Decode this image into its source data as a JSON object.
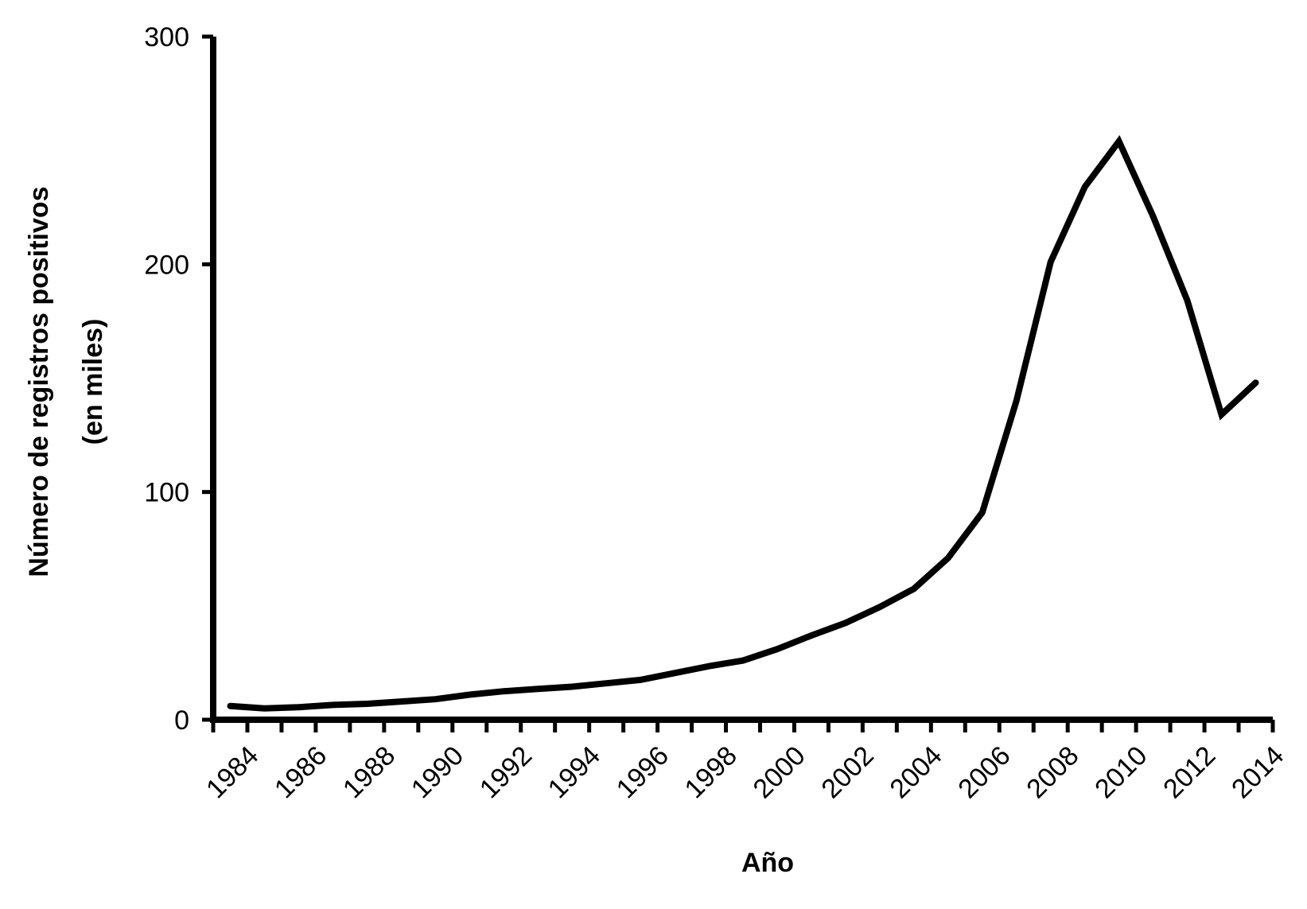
{
  "chart_data": {
    "type": "line",
    "title": "",
    "xlabel": "Año",
    "ylabel_lines": [
      "Número de registros positivos",
      "(en miles)"
    ],
    "x": [
      1984,
      1985,
      1986,
      1987,
      1988,
      1989,
      1990,
      1991,
      1992,
      1993,
      1994,
      1995,
      1996,
      1997,
      1998,
      1999,
      2000,
      2001,
      2002,
      2003,
      2004,
      2005,
      2006,
      2007,
      2008,
      2009,
      2010,
      2011,
      2012,
      2013,
      2014
    ],
    "series": [
      {
        "values": [
          6,
          5,
          5.5,
          6.5,
          7,
          8,
          9,
          11,
          12.5,
          13.5,
          14.5,
          16,
          17.5,
          20.5,
          23.5,
          26,
          31,
          37,
          42.5,
          49.5,
          57.5,
          71,
          91,
          140,
          201,
          234,
          254,
          221,
          184,
          134,
          148
        ]
      }
    ],
    "ylim": [
      0,
      300
    ],
    "yticks": [
      0,
      100,
      200,
      300
    ],
    "ytick_labels": [
      "0",
      "100",
      "200",
      "300"
    ],
    "xlim": [
      1983.5,
      2014.5
    ],
    "xtick_labels": [
      "1984",
      "1986",
      "1988",
      "1990",
      "1992",
      "1994",
      "1996",
      "1998",
      "2000",
      "2002",
      "2004",
      "2006",
      "2008",
      "2010",
      "2012",
      "2014"
    ],
    "grid": false,
    "legend": "none",
    "line_color": "#000000"
  }
}
